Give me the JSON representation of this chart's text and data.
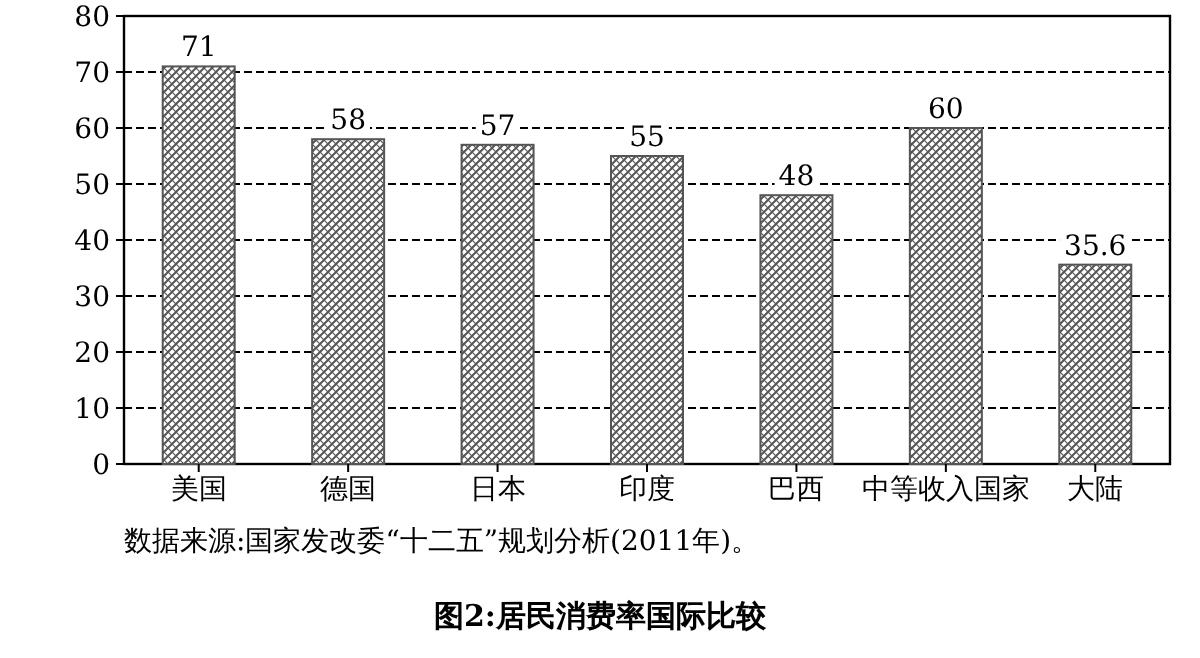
{
  "chart_data": {
    "type": "bar",
    "title": "图2:居民消费率国际比较",
    "categories": [
      "美国",
      "德国",
      "日本",
      "印度",
      "巴西",
      "中等收入国家",
      "大陆"
    ],
    "values": [
      71,
      58,
      57,
      55,
      48,
      60,
      35.6
    ],
    "color": "#555555",
    "ylim": [
      0,
      80
    ],
    "yticks": [
      0,
      10,
      20,
      30,
      40,
      50,
      60,
      70,
      80
    ],
    "grid": "y",
    "data_labels": true,
    "annotations": [
      "数据来源:国家发改委“十二五”规划分析(2011年)。"
    ]
  }
}
